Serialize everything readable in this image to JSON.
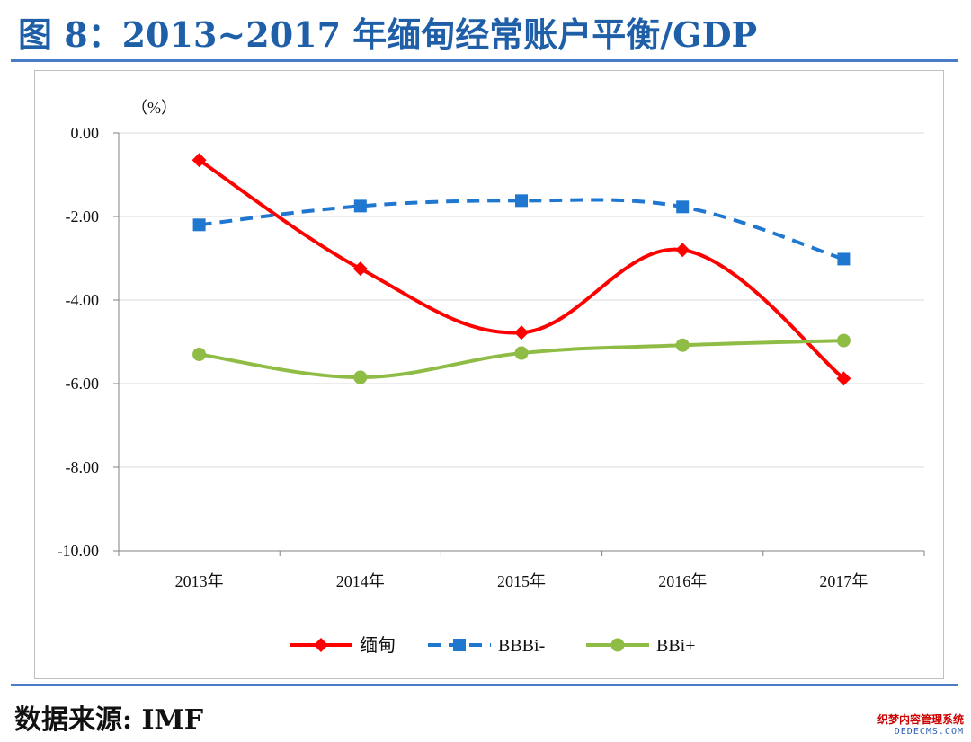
{
  "figure": {
    "title": "图 8：2013~2017 年缅甸经常账户平衡/GDP",
    "source": "数据来源: IMF"
  },
  "watermark": {
    "line1": "织梦内容管理系统",
    "line2": "DEDECMS.COM"
  },
  "chart_data": {
    "type": "line",
    "title": "图 8：2013~2017 年缅甸经常账户平衡/GDP",
    "unit_label": "（%）",
    "categories": [
      "2013年",
      "2014年",
      "2015年",
      "2016年",
      "2017年"
    ],
    "ylim": [
      -10,
      0
    ],
    "yticks": [
      0,
      -2,
      -4,
      -6,
      -8,
      -10
    ],
    "ytick_labels": [
      "0.00",
      "-2.00",
      "-4.00",
      "-6.00",
      "-8.00",
      "-10.00"
    ],
    "grid": true,
    "legend_position": "bottom",
    "series": [
      {
        "name": "缅甸",
        "values": [
          -0.65,
          -3.25,
          -4.78,
          -2.8,
          -5.88
        ],
        "color": "#ff0000",
        "marker": "diamond",
        "dash": false,
        "smooth": true
      },
      {
        "name": "BBBi-",
        "values": [
          -2.2,
          -1.75,
          -1.62,
          -1.77,
          -3.02
        ],
        "color": "#1f77d0",
        "marker": "square",
        "dash": true,
        "smooth": true
      },
      {
        "name": "BBi+",
        "values": [
          -5.3,
          -5.85,
          -5.27,
          -5.08,
          -4.97
        ],
        "color": "#8fbc45",
        "marker": "circle",
        "dash": false,
        "smooth": true
      }
    ]
  }
}
